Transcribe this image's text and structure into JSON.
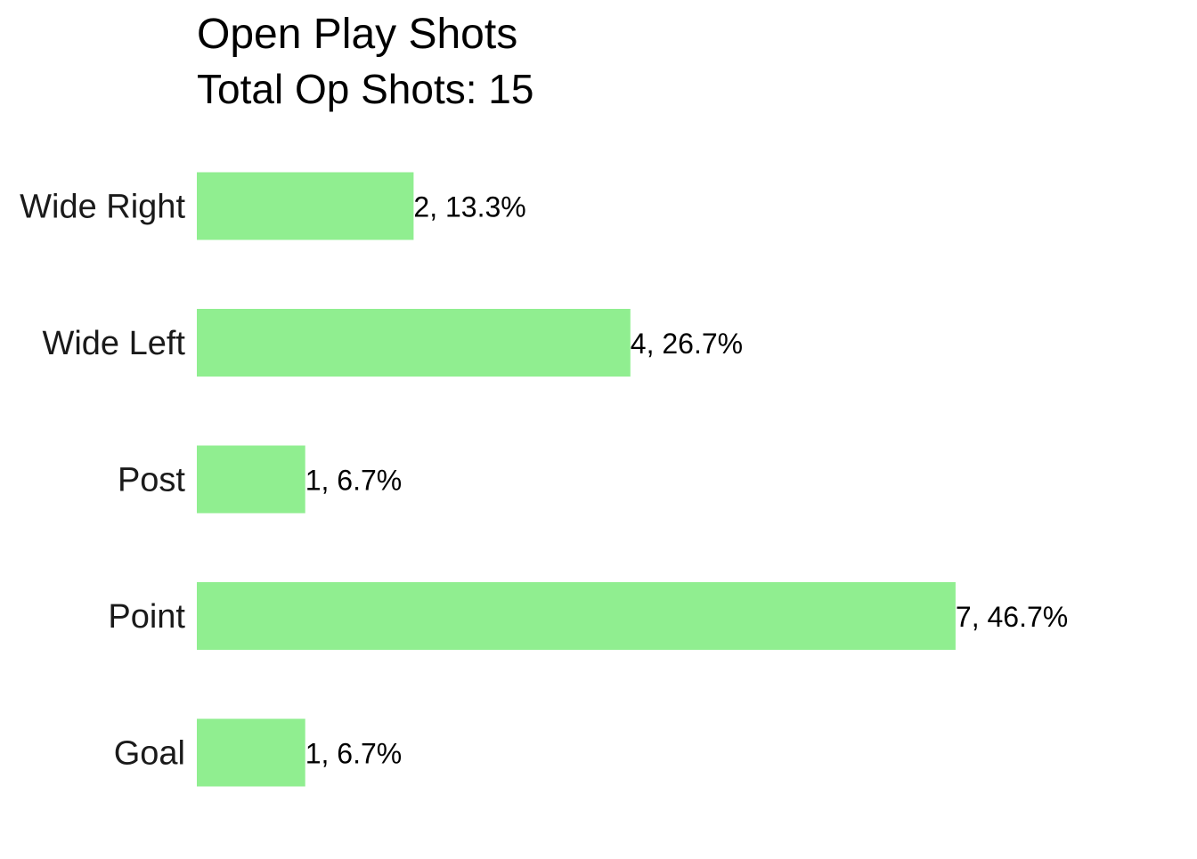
{
  "chart_data": {
    "type": "bar",
    "orientation": "horizontal",
    "title": "Open Play Shots",
    "subtitle": "Total Op Shots: 15",
    "categories": [
      "Wide Right",
      "Wide Left",
      "Post",
      "Point",
      "Goal"
    ],
    "values": [
      2,
      4,
      1,
      7,
      1
    ],
    "value_labels": [
      "2, 13.3%",
      "4, 26.7%",
      "1, 6.7%",
      "7, 46.7%",
      "1, 6.7%"
    ],
    "xlim": [
      0,
      7
    ],
    "grid": false,
    "legend": "none",
    "bar_color": "#90EE90"
  }
}
